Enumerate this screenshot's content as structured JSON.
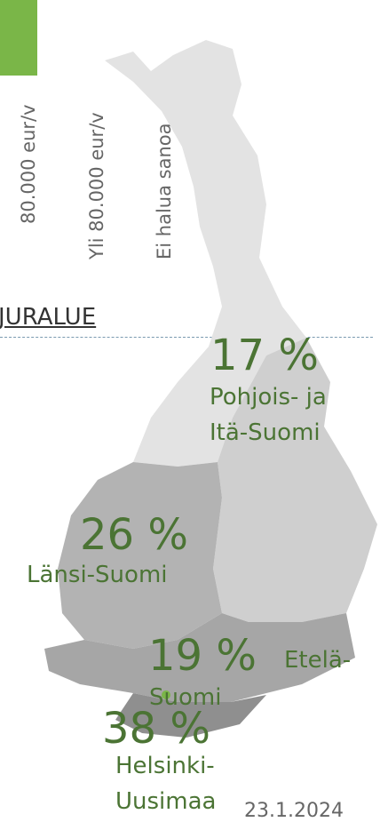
{
  "legend_labels": [
    "80.000 eur/v",
    "Yli 80.000 eur/v",
    "Ei halua sanoa"
  ],
  "heading": "JURALUE",
  "regions": [
    {
      "percent": "17 %",
      "name_lines": [
        "Pohjois- ja",
        "Itä-Suomi"
      ]
    },
    {
      "percent": "26 %",
      "name_lines": [
        "Länsi-Suomi"
      ]
    },
    {
      "percent": "19 %",
      "name_lines": [
        "Etelä-",
        "Suomi"
      ]
    },
    {
      "percent": "38 %",
      "name_lines": [
        "Helsinki-",
        "Uusimaa"
      ]
    }
  ],
  "date": "23.1.2024"
}
